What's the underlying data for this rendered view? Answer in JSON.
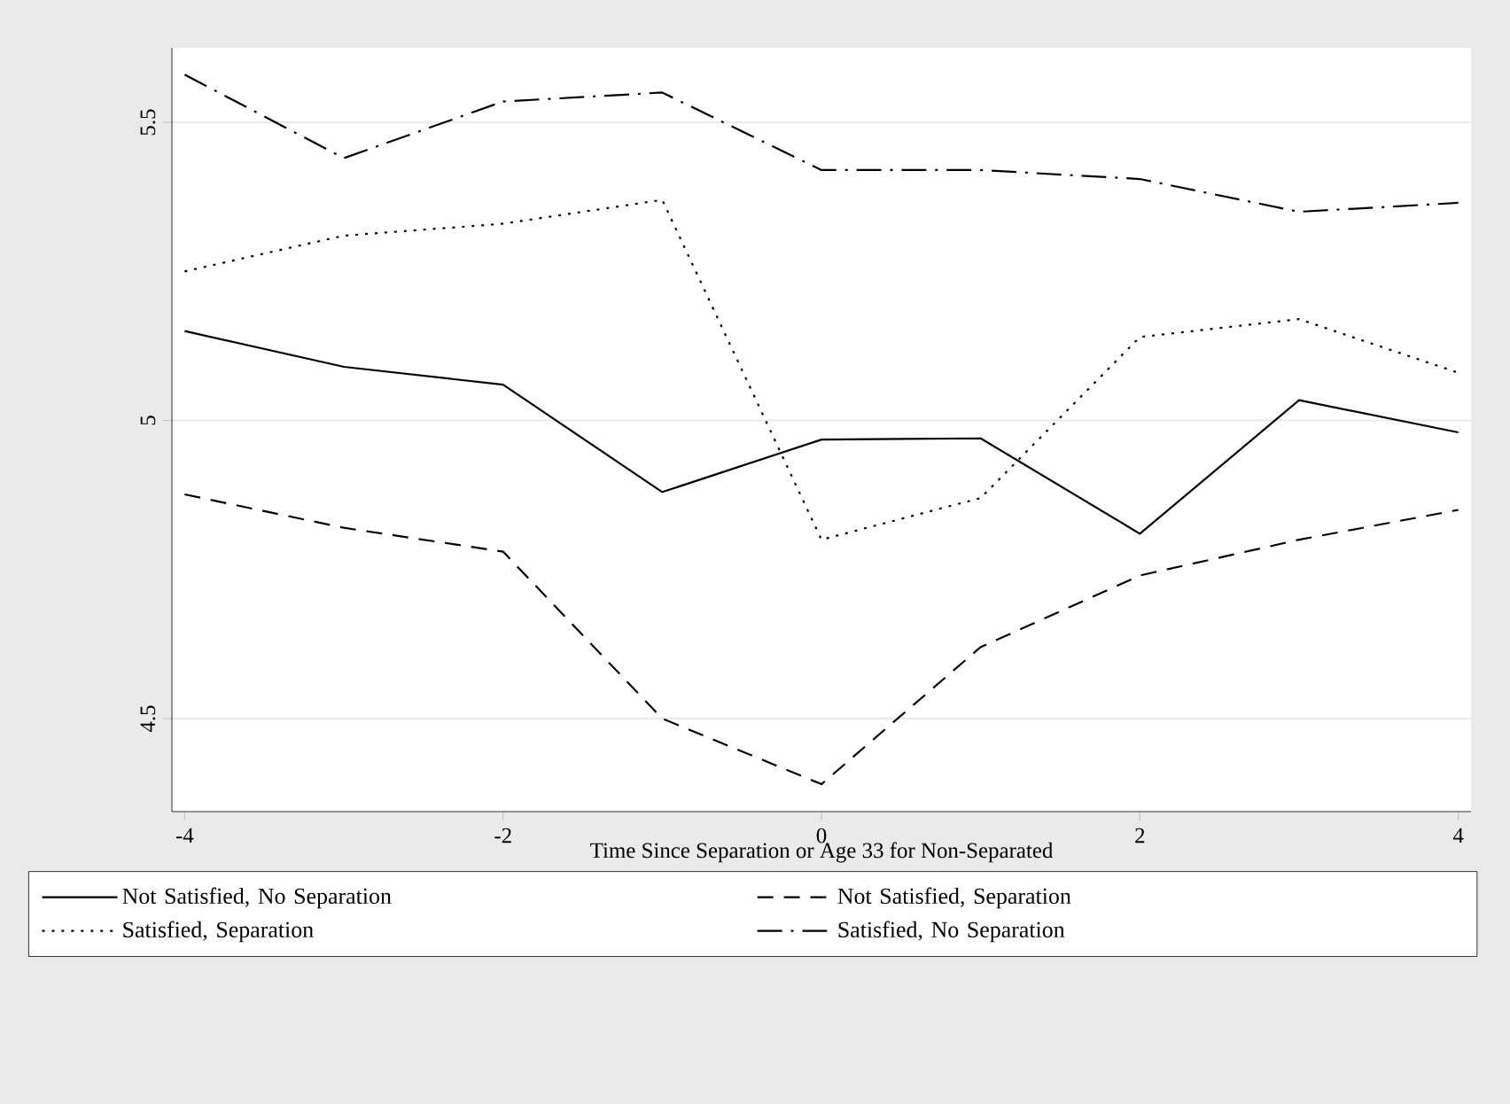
{
  "chart_data": {
    "type": "line",
    "xlabel": "Time Since Separation or Age 33 for Non-Separated",
    "x": [
      -4,
      -3,
      -2,
      -1,
      0,
      1,
      2,
      3,
      4
    ],
    "xlim": [
      -4.08,
      4.08
    ],
    "xticks": [
      -4,
      -2,
      0,
      2,
      4
    ],
    "ylim": [
      4.344,
      5.625
    ],
    "yticks": [
      4.5,
      5,
      5.5
    ],
    "grid": "y",
    "legend": "bottom",
    "marker": "none",
    "series": [
      {
        "name": "Not Satisfied, No Separation",
        "color": "#000000",
        "line_style": "solid",
        "values": [
          5.15,
          5.09,
          5.06,
          4.88,
          4.968,
          4.97,
          4.81,
          5.034,
          4.98
        ]
      },
      {
        "name": "Not Satisfied, Separation",
        "color": "#000000",
        "line_style": "dashed",
        "values": [
          4.876,
          4.82,
          4.78,
          4.5,
          4.39,
          4.62,
          4.74,
          4.8,
          4.85
        ]
      },
      {
        "name": "Satisfied, Separation",
        "color": "#000000",
        "line_style": "dotted",
        "values": [
          5.25,
          5.31,
          5.33,
          5.37,
          4.8,
          4.87,
          5.14,
          5.17,
          5.08
        ]
      },
      {
        "name": "Satisfied, No Separation",
        "color": "#000000",
        "line_style": "dashdot",
        "values": [
          5.58,
          5.44,
          5.535,
          5.55,
          5.42,
          5.42,
          5.405,
          5.35,
          5.365
        ]
      }
    ]
  }
}
